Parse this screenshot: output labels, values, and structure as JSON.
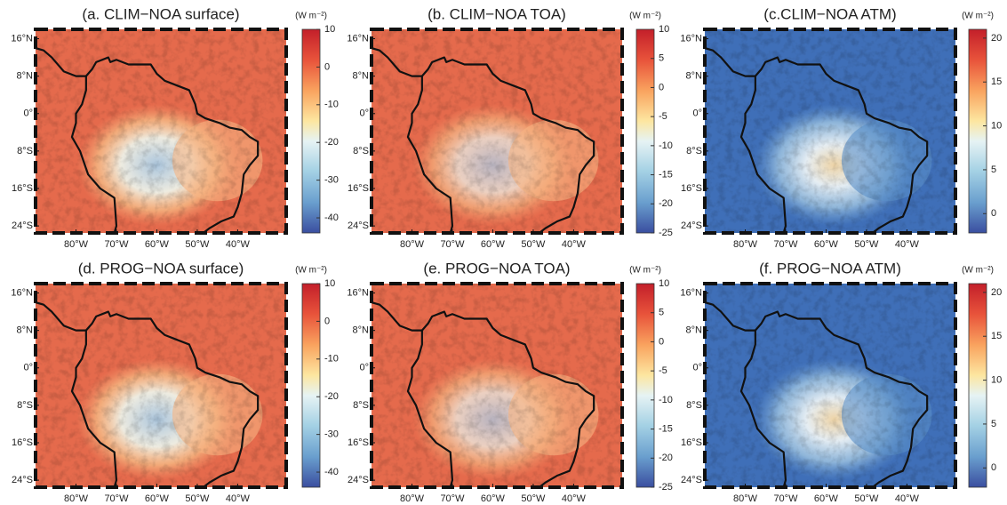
{
  "panels": [
    {
      "title": "(a. CLIM−NOA surface)",
      "unit": "(W m⁻²)",
      "colorbar": {
        "lim": [
          -44,
          10
        ],
        "ticks": [
          10,
          0,
          -10,
          -20,
          -30,
          -40
        ]
      },
      "map": {
        "xlim": [
          -90,
          -28
        ],
        "ylim": [
          -25.5,
          18
        ],
        "xticks": [
          {
            "value": -80,
            "label": "80°W"
          },
          {
            "value": -70,
            "label": "70°W"
          },
          {
            "value": -60,
            "label": "60°W"
          },
          {
            "value": -50,
            "label": "50°W"
          },
          {
            "value": -40,
            "label": "40°W"
          }
        ],
        "yticks": [
          {
            "value": 16,
            "label": "16°N"
          },
          {
            "value": 8,
            "label": "8°N"
          },
          {
            "value": 0,
            "label": "0°"
          },
          {
            "value": -8,
            "label": "8°S"
          },
          {
            "value": -16,
            "label": "16°S"
          },
          {
            "value": -24,
            "label": "24°S"
          }
        ]
      }
    },
    {
      "title": "(b. CLIM−NOA TOA)",
      "unit": "(W m⁻²)",
      "colorbar": {
        "lim": [
          -25,
          10
        ],
        "ticks": [
          10,
          5,
          0,
          -5,
          -10,
          -15,
          -20,
          -25
        ]
      },
      "map": {
        "xlim": [
          -90,
          -28
        ],
        "ylim": [
          -25.5,
          18
        ],
        "xticks": [
          {
            "value": -80,
            "label": "80°W"
          },
          {
            "value": -70,
            "label": "70°W"
          },
          {
            "value": -60,
            "label": "60°W"
          },
          {
            "value": -50,
            "label": "50°W"
          },
          {
            "value": -40,
            "label": "40°W"
          }
        ],
        "yticks": [
          {
            "value": 16,
            "label": "16°N"
          },
          {
            "value": 8,
            "label": "8°N"
          },
          {
            "value": 0,
            "label": "0°"
          },
          {
            "value": -8,
            "label": "8°S"
          },
          {
            "value": -16,
            "label": "16°S"
          },
          {
            "value": -24,
            "label": "24°S"
          }
        ]
      }
    },
    {
      "title": "(c.CLIM−NOA ATM)",
      "unit": "(W m⁻²)",
      "colorbar": {
        "lim": [
          -2.2,
          21
        ],
        "ticks": [
          20,
          15,
          10,
          5,
          0
        ]
      },
      "map": {
        "xlim": [
          -90,
          -28
        ],
        "ylim": [
          -25.5,
          18
        ],
        "xticks": [
          {
            "value": -80,
            "label": "80°W"
          },
          {
            "value": -70,
            "label": "70°W"
          },
          {
            "value": -60,
            "label": "60°W"
          },
          {
            "value": -50,
            "label": "50°W"
          },
          {
            "value": -40,
            "label": "40°W"
          }
        ],
        "yticks": [
          {
            "value": 16,
            "label": "16°N"
          },
          {
            "value": 8,
            "label": "8°N"
          },
          {
            "value": 0,
            "label": "0°"
          },
          {
            "value": -8,
            "label": "8°S"
          },
          {
            "value": -16,
            "label": "16°S"
          },
          {
            "value": -24,
            "label": "24°S"
          }
        ]
      }
    },
    {
      "title": "(d. PROG−NOA surface)",
      "unit": "(W m⁻²)",
      "colorbar": {
        "lim": [
          -44,
          10
        ],
        "ticks": [
          10,
          0,
          -10,
          -20,
          -30,
          -40
        ]
      },
      "map": {
        "xlim": [
          -90,
          -28
        ],
        "ylim": [
          -25.5,
          18
        ],
        "xticks": [
          {
            "value": -80,
            "label": "80°W"
          },
          {
            "value": -70,
            "label": "70°W"
          },
          {
            "value": -60,
            "label": "60°W"
          },
          {
            "value": -50,
            "label": "50°W"
          },
          {
            "value": -40,
            "label": "40°W"
          }
        ],
        "yticks": [
          {
            "value": 16,
            "label": "16°N"
          },
          {
            "value": 8,
            "label": "8°N"
          },
          {
            "value": 0,
            "label": "0°"
          },
          {
            "value": -8,
            "label": "8°S"
          },
          {
            "value": -16,
            "label": "16°S"
          },
          {
            "value": -24,
            "label": "24°S"
          }
        ]
      }
    },
    {
      "title": "(e. PROG−NOA TOA)",
      "unit": "(W m⁻²)",
      "colorbar": {
        "lim": [
          -25,
          10
        ],
        "ticks": [
          10,
          5,
          0,
          -5,
          -10,
          -15,
          -20,
          -25
        ]
      },
      "map": {
        "xlim": [
          -90,
          -28
        ],
        "ylim": [
          -25.5,
          18
        ],
        "xticks": [
          {
            "value": -80,
            "label": "80°W"
          },
          {
            "value": -70,
            "label": "70°W"
          },
          {
            "value": -60,
            "label": "60°W"
          },
          {
            "value": -50,
            "label": "50°W"
          },
          {
            "value": -40,
            "label": "40°W"
          }
        ],
        "yticks": [
          {
            "value": 16,
            "label": "16°N"
          },
          {
            "value": 8,
            "label": "8°N"
          },
          {
            "value": 0,
            "label": "0°"
          },
          {
            "value": -8,
            "label": "8°S"
          },
          {
            "value": -16,
            "label": "16°S"
          },
          {
            "value": -24,
            "label": "24°S"
          }
        ]
      }
    },
    {
      "title": "(f. PROG−NOA ATM)",
      "unit": "(W m⁻²)",
      "colorbar": {
        "lim": [
          -2.2,
          21
        ],
        "ticks": [
          20,
          15,
          10,
          5,
          0
        ]
      },
      "map": {
        "xlim": [
          -90,
          -28
        ],
        "ylim": [
          -25.5,
          18
        ],
        "xticks": [
          {
            "value": -80,
            "label": "80°W"
          },
          {
            "value": -70,
            "label": "70°W"
          },
          {
            "value": -60,
            "label": "60°W"
          },
          {
            "value": -50,
            "label": "50°W"
          },
          {
            "value": -40,
            "label": "40°W"
          }
        ],
        "yticks": [
          {
            "value": 16,
            "label": "16°N"
          },
          {
            "value": 8,
            "label": "8°N"
          },
          {
            "value": 0,
            "label": "0°"
          },
          {
            "value": -8,
            "label": "8°S"
          },
          {
            "value": -16,
            "label": "16°S"
          },
          {
            "value": -24,
            "label": "24°S"
          }
        ]
      }
    }
  ]
}
